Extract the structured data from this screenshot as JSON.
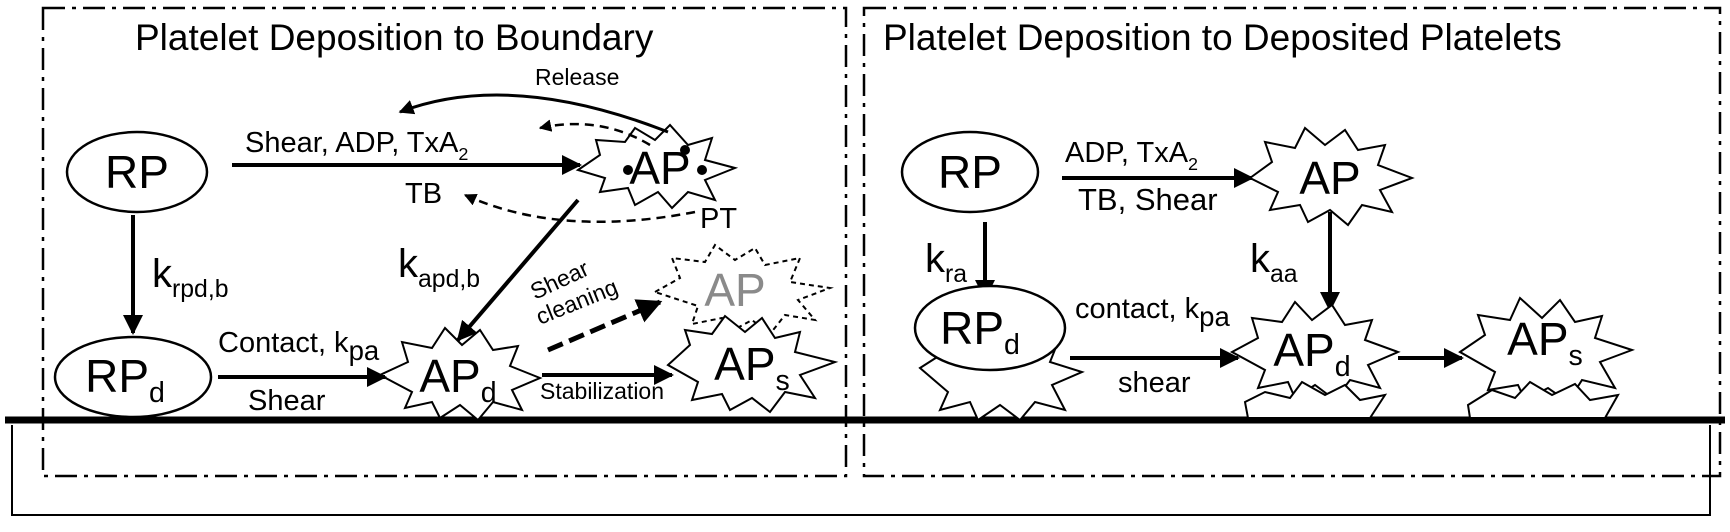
{
  "left_panel": {
    "title": "Platelet Deposition to Boundary",
    "nodes": {
      "rp": "RP",
      "rpd": "RP",
      "rpd_sub": "d",
      "ap": "AP",
      "apd": "AP",
      "apd_sub": "d",
      "aps": "AP",
      "aps_sub": "s",
      "ap_cleaned": "AP",
      "tb": "TB",
      "pt": "PT"
    },
    "labels": {
      "release": "Release",
      "activation": "Shear, ADP, TxA",
      "activation_sub": "2",
      "k_rpd": "k",
      "k_rpd_sub": "rpd,b",
      "k_apd": "k",
      "k_apd_sub": "apd,b",
      "contact": "Contact, k",
      "contact_sub": "pa",
      "shear": "Shear",
      "shear_cleaning_1": "Shear",
      "shear_cleaning_2": "cleaning",
      "stabilization": "Stabilization"
    }
  },
  "right_panel": {
    "title": "Platelet Deposition to Deposited Platelets",
    "nodes": {
      "rp": "RP",
      "ap": "AP",
      "rpd": "RP",
      "rpd_sub": "d",
      "apd": "AP",
      "apd_sub": "d",
      "aps": "AP",
      "aps_sub": "s"
    },
    "labels": {
      "activation": "ADP, TxA",
      "activation_sub": "2",
      "activation_2": "TB, Shear",
      "k_ra": "k",
      "k_ra_sub": "ra",
      "k_aa": "k",
      "k_aa_sub": "aa",
      "contact": "contact, k",
      "contact_sub": "pa",
      "shear": "shear"
    }
  }
}
